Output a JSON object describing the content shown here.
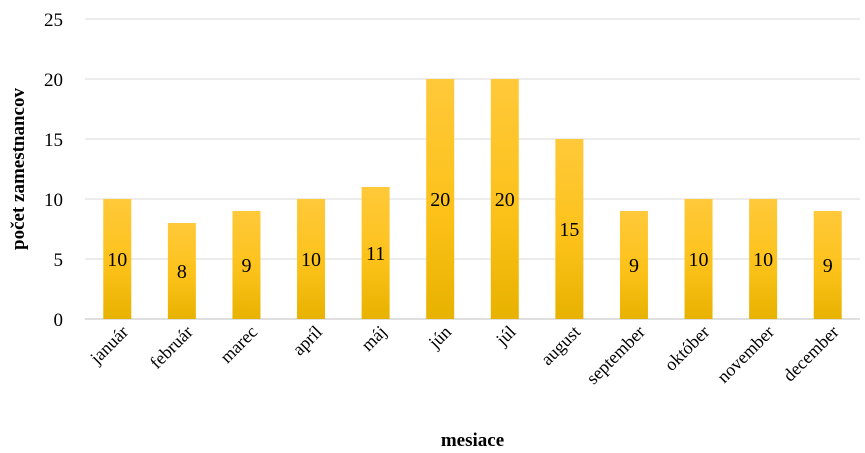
{
  "chart_data": {
    "type": "bar",
    "title": "",
    "xlabel": "mesiace",
    "ylabel": "počet zamestnancov",
    "categories": [
      "január",
      "február",
      "marec",
      "apríl",
      "máj",
      "jún",
      "júl",
      "august",
      "september",
      "október",
      "november",
      "december"
    ],
    "values": [
      10,
      8,
      9,
      10,
      11,
      20,
      20,
      15,
      9,
      10,
      10,
      9
    ],
    "data_labels": [
      "10",
      "8",
      "9",
      "10",
      "11",
      "20",
      "20",
      "15",
      "9",
      "10",
      "10",
      "9"
    ],
    "ylim": [
      0,
      25
    ],
    "yticks": [
      0,
      5,
      10,
      15,
      20,
      25
    ],
    "grid": true,
    "legend": "none",
    "bar_color_top": "#ffc93a",
    "bar_color_bottom": "#e8b200"
  }
}
